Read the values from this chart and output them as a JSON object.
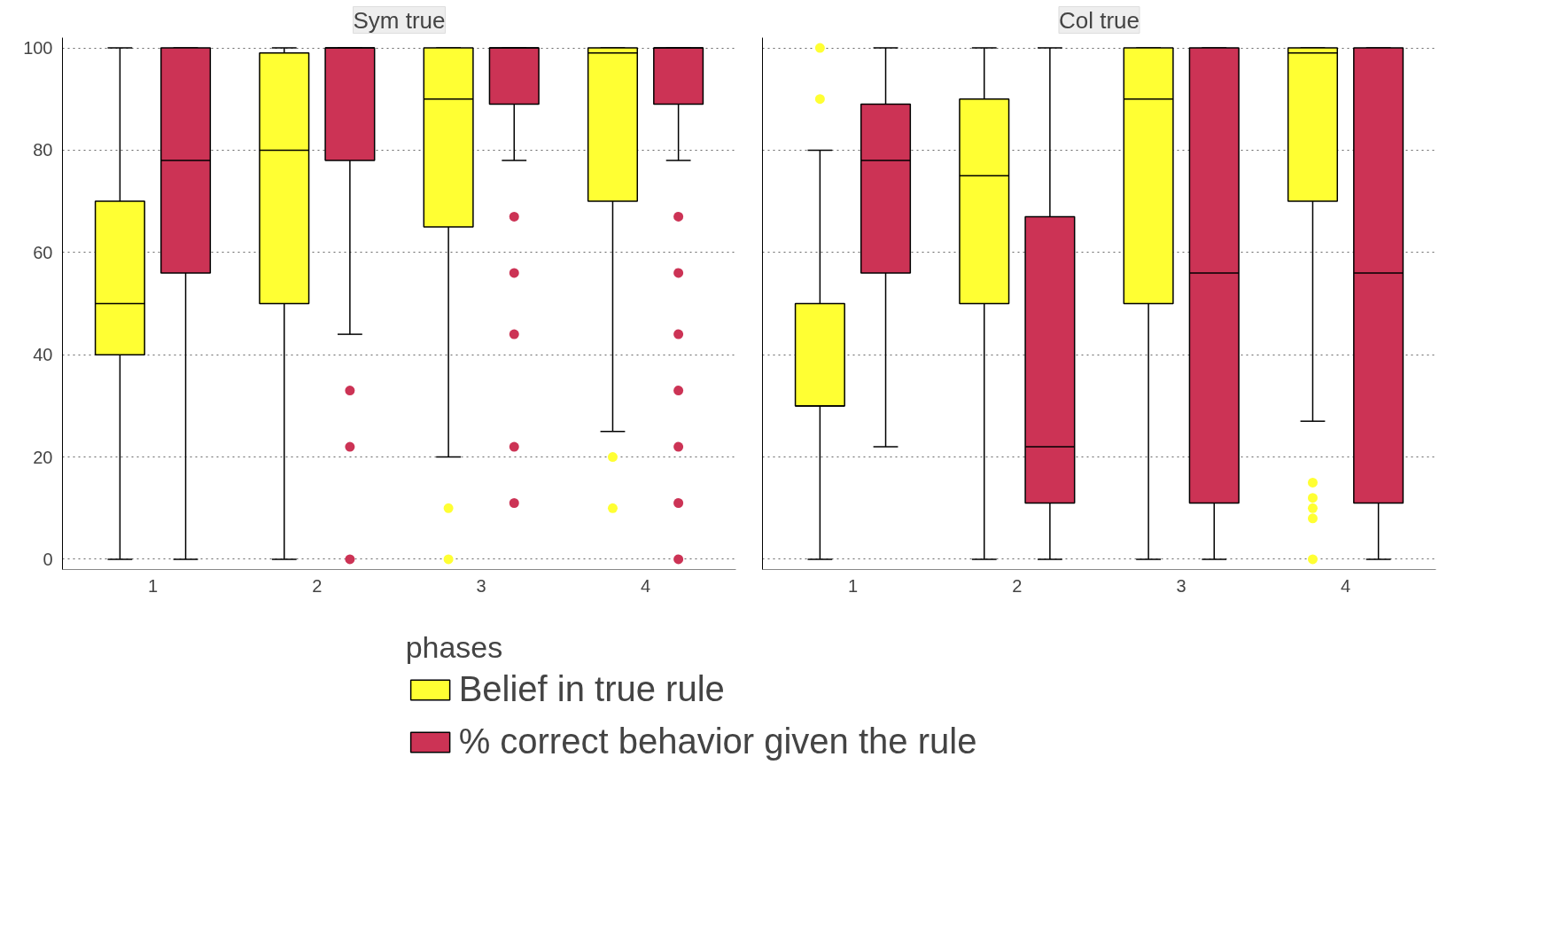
{
  "chart_data": [
    {
      "type": "box",
      "title": "Sym true",
      "xlabel": null,
      "categories": [
        "1",
        "2",
        "3",
        "4"
      ],
      "ylim": [
        -2,
        102
      ],
      "yticks": [
        0,
        20,
        40,
        60,
        80,
        100
      ],
      "grid": "y",
      "legend": "bottom",
      "legend_title": "phases",
      "series": [
        {
          "name": "Belief in true rule",
          "color": "#ffff33",
          "boxes": [
            {
              "low": 0,
              "q1": 40,
              "median": 50,
              "q3": 70,
              "high": 100
            },
            {
              "low": 0,
              "q1": 50,
              "median": 80,
              "q3": 99,
              "high": 100
            },
            {
              "low": 20,
              "q1": 65,
              "median": 90,
              "q3": 100,
              "high": 100,
              "outliers": [
                10,
                0
              ]
            },
            {
              "low": 25,
              "q1": 70,
              "median": 99,
              "q3": 100,
              "high": 100,
              "outliers": [
                20,
                10
              ]
            }
          ]
        },
        {
          "name": "% correct behavior given the rule",
          "color": "#cc3355",
          "boxes": [
            {
              "low": 0,
              "q1": 56,
              "median": 78,
              "q3": 100,
              "high": 100
            },
            {
              "low": 44,
              "q1": 78,
              "median": 100,
              "q3": 100,
              "high": 100,
              "outliers": [
                33,
                22,
                0
              ]
            },
            {
              "low": 78,
              "q1": 89,
              "median": 100,
              "q3": 100,
              "high": 100,
              "outliers": [
                67,
                56,
                44,
                22,
                11
              ]
            },
            {
              "low": 78,
              "q1": 89,
              "median": 100,
              "q3": 100,
              "high": 100,
              "outliers": [
                67,
                56,
                44,
                33,
                22,
                11,
                0
              ]
            }
          ]
        }
      ]
    },
    {
      "type": "box",
      "title": "Col true",
      "categories": [
        "1",
        "2",
        "3",
        "4"
      ],
      "ylim": [
        -2,
        102
      ],
      "yticks": [
        0,
        20,
        40,
        60,
        80,
        100
      ],
      "grid": "y",
      "tick_labels": "x",
      "series": [
        {
          "color": "#ffff33",
          "boxes": [
            {
              "low": 0,
              "q1": 30,
              "median": 30,
              "q3": 50,
              "high": 80,
              "outliers": [
                90,
                100
              ]
            },
            {
              "low": 0,
              "q1": 50,
              "median": 75,
              "q3": 90,
              "high": 100
            },
            {
              "low": 0,
              "q1": 50,
              "median": 90,
              "q3": 100,
              "high": 100
            },
            {
              "low": 27,
              "q1": 70,
              "median": 99,
              "q3": 100,
              "high": 100,
              "outliers": [
                15,
                12,
                10,
                8,
                0
              ]
            }
          ]
        },
        {
          "color": "#cc3355",
          "boxes": [
            {
              "low": 22,
              "q1": 56,
              "median": 78,
              "q3": 89,
              "high": 100
            },
            {
              "low": 0,
              "q1": 11,
              "median": 22,
              "q3": 67,
              "high": 100
            },
            {
              "low": 0,
              "q1": 11,
              "median": 56,
              "q3": 100,
              "high": 100
            },
            {
              "low": 0,
              "q1": 11,
              "median": 56,
              "q3": 100,
              "high": 100
            }
          ]
        }
      ]
    }
  ]
}
